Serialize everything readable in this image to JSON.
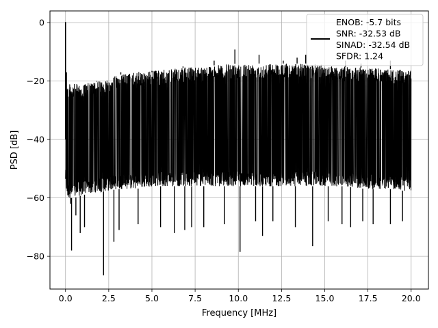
{
  "chart_data": {
    "type": "line",
    "title": "",
    "xlabel": "Frequency [MHz]",
    "ylabel": "PSD [dB]",
    "xlim": [
      -0.9,
      21.0
    ],
    "ylim": [
      -91.2,
      4.0
    ],
    "xticks": [
      0.0,
      2.5,
      5.0,
      7.5,
      10.0,
      12.5,
      15.0,
      17.5,
      20.0
    ],
    "xtick_labels": [
      "0.0",
      "2.5",
      "5.0",
      "7.5",
      "10.0",
      "12.5",
      "15.0",
      "17.5",
      "20.0"
    ],
    "yticks": [
      0,
      -20,
      -40,
      -60,
      -80
    ],
    "ytick_labels": [
      "0",
      "−20",
      "−40",
      "−60",
      "−80"
    ],
    "grid": true,
    "legend_position": "upper-right",
    "legend_lines": [
      "ENOB: -5.7 bits",
      "SNR: -32.53 dB",
      "SINAD: -32.54 dB",
      "SFDR: 1.24"
    ],
    "series": [
      {
        "color": "#000000",
        "description": "dense noise-floor spectrum; DC/fundamental peak near 0 MHz",
        "envelope_x": [
          0.0,
          0.1,
          0.5,
          1.0,
          2.0,
          3.0,
          4.0,
          5.0,
          6.0,
          7.5,
          9.0,
          10.0,
          11.0,
          12.5,
          14.0,
          15.0,
          16.0,
          17.5,
          19.0,
          20.0
        ],
        "envelope_upper": [
          -18,
          -21,
          -21,
          -21,
          -20,
          -18,
          -17,
          -16.5,
          -16,
          -15,
          -14.5,
          -14,
          -14,
          -14,
          -14,
          -14.5,
          -15,
          -15.5,
          -16,
          -16.5
        ],
        "envelope_lower": [
          -55,
          -60,
          -60,
          -59,
          -58,
          -57,
          -57,
          -56,
          -56,
          -56,
          -56,
          -56,
          -56,
          -56,
          -56,
          -56,
          -56,
          -57,
          -57,
          -58
        ],
        "peaks": [
          {
            "x": 0.0,
            "y": 0.2
          },
          {
            "x": 0.05,
            "y": -17
          }
        ],
        "spikes_down": [
          {
            "x": 0.3,
            "y": -62
          },
          {
            "x": 0.35,
            "y": -78
          },
          {
            "x": 0.6,
            "y": -66
          },
          {
            "x": 0.85,
            "y": -72
          },
          {
            "x": 1.1,
            "y": -70
          },
          {
            "x": 2.2,
            "y": -86.5
          },
          {
            "x": 2.8,
            "y": -75
          },
          {
            "x": 3.1,
            "y": -71
          },
          {
            "x": 4.2,
            "y": -69
          },
          {
            "x": 5.5,
            "y": -70
          },
          {
            "x": 6.3,
            "y": -72
          },
          {
            "x": 6.9,
            "y": -71
          },
          {
            "x": 7.3,
            "y": -70
          },
          {
            "x": 8.0,
            "y": -70
          },
          {
            "x": 9.2,
            "y": -69
          },
          {
            "x": 10.1,
            "y": -78.5
          },
          {
            "x": 11.0,
            "y": -68
          },
          {
            "x": 11.4,
            "y": -73
          },
          {
            "x": 12.0,
            "y": -68
          },
          {
            "x": 13.3,
            "y": -70
          },
          {
            "x": 14.3,
            "y": -76.5
          },
          {
            "x": 15.2,
            "y": -68
          },
          {
            "x": 16.0,
            "y": -69
          },
          {
            "x": 16.5,
            "y": -70
          },
          {
            "x": 17.2,
            "y": -68
          },
          {
            "x": 17.8,
            "y": -69
          },
          {
            "x": 18.8,
            "y": -69
          },
          {
            "x": 19.5,
            "y": -68
          }
        ],
        "spikes_up": [
          {
            "x": 1.8,
            "y": -20
          },
          {
            "x": 3.2,
            "y": -17
          },
          {
            "x": 5.0,
            "y": -17
          },
          {
            "x": 6.8,
            "y": -15
          },
          {
            "x": 8.6,
            "y": -13
          },
          {
            "x": 9.8,
            "y": -9.2
          },
          {
            "x": 11.2,
            "y": -11
          },
          {
            "x": 12.6,
            "y": -13
          },
          {
            "x": 13.4,
            "y": -12
          },
          {
            "x": 13.9,
            "y": -11
          },
          {
            "x": 14.8,
            "y": -15
          },
          {
            "x": 16.2,
            "y": -13
          },
          {
            "x": 17.1,
            "y": -14
          },
          {
            "x": 18.8,
            "y": -13
          }
        ]
      }
    ]
  }
}
